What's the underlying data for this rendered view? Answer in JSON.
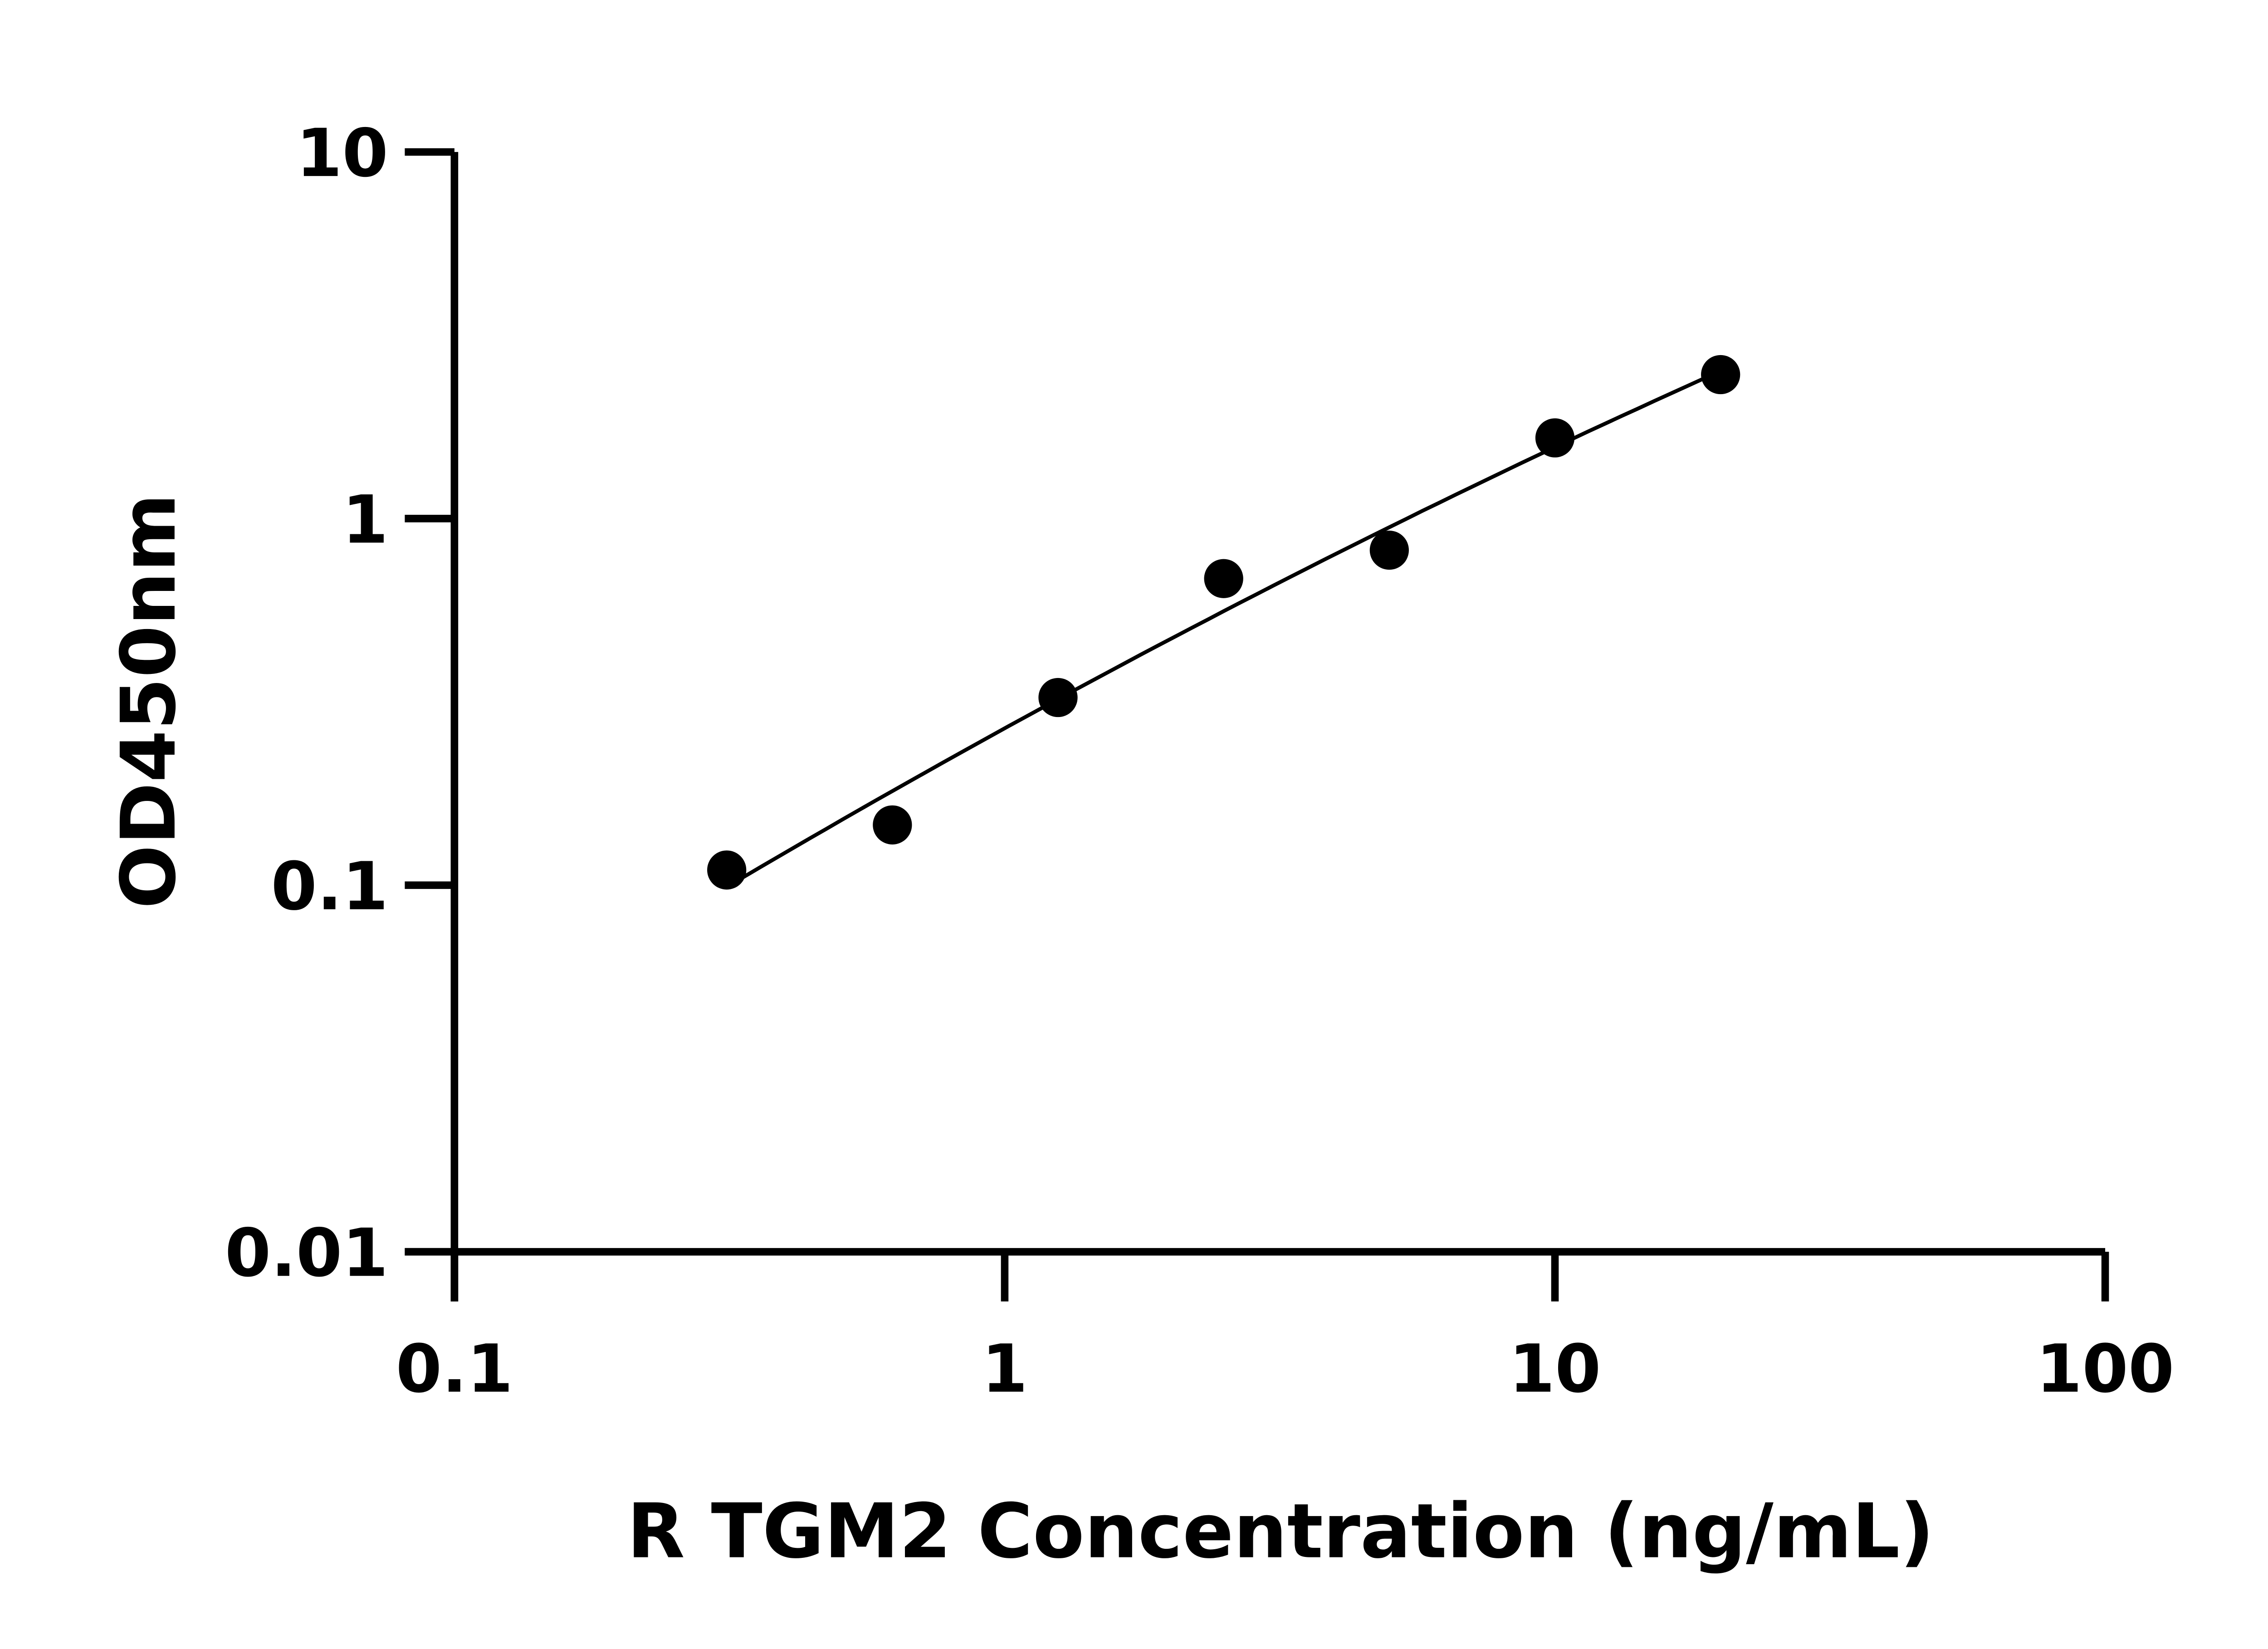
{
  "chart_data": {
    "type": "scatter",
    "title": "",
    "xlabel": "R TGM2 Concentration (ng/mL)",
    "ylabel": "OD450nm",
    "x_scale": "log",
    "y_scale": "log",
    "xlim": [
      0.1,
      100
    ],
    "ylim": [
      0.01,
      10
    ],
    "x_ticks": [
      "0.1",
      "1",
      "10",
      "100"
    ],
    "y_ticks": [
      "0.01",
      "0.1",
      "1",
      "10"
    ],
    "grid": false,
    "legend": "none",
    "fit_line": true,
    "marker_color": "#000000",
    "points": [
      {
        "x": 0.3125,
        "y": 0.11
      },
      {
        "x": 0.625,
        "y": 0.146
      },
      {
        "x": 1.25,
        "y": 0.325
      },
      {
        "x": 2.5,
        "y": 0.686
      },
      {
        "x": 5,
        "y": 0.82
      },
      {
        "x": 10,
        "y": 1.66
      },
      {
        "x": 20,
        "y": 2.47
      }
    ]
  }
}
